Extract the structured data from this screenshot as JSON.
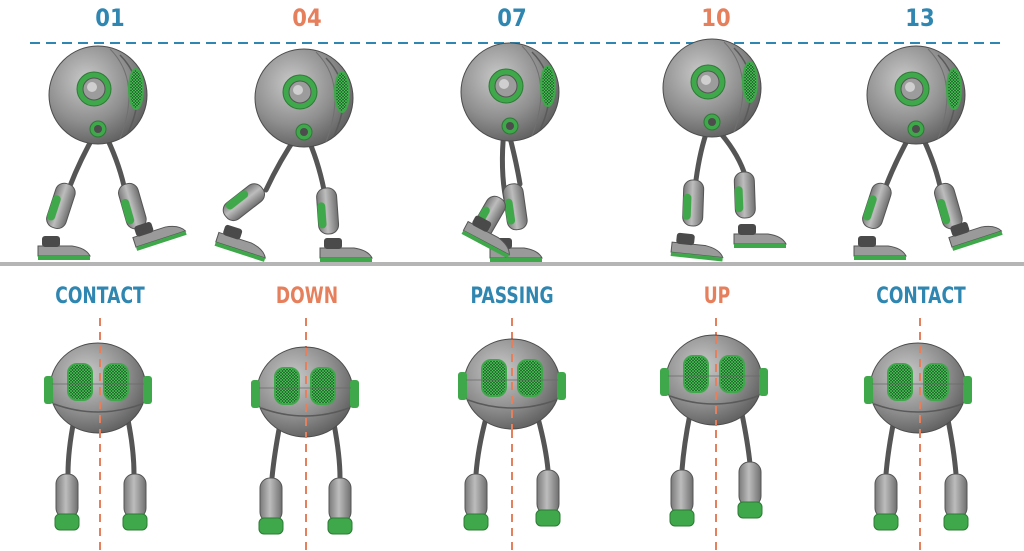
{
  "colors": {
    "blue": "#2f86b0",
    "orange": "#e67f5c",
    "robot_gray": "#8e8e8e",
    "robot_green": "#3fa84a",
    "ground": "#b5b5b5"
  },
  "frames": [
    {
      "number": "01",
      "pose": "CONTACT",
      "color": "blue"
    },
    {
      "number": "04",
      "pose": "DOWN",
      "color": "orange"
    },
    {
      "number": "07",
      "pose": "PASSING",
      "color": "blue"
    },
    {
      "number": "10",
      "pose": "UP",
      "color": "orange"
    },
    {
      "number": "13",
      "pose": "CONTACT",
      "color": "blue"
    }
  ]
}
